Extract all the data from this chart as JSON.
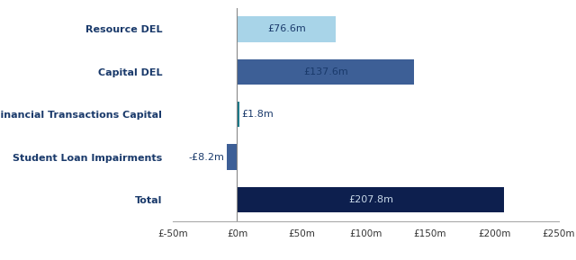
{
  "categories": [
    "Resource DEL",
    "Capital DEL",
    "Financial Transactions Capital",
    "Student Loan Impairments",
    "Total"
  ],
  "values": [
    76.6,
    137.6,
    1.8,
    -8.2,
    207.8
  ],
  "bar_colors": [
    "#a8d4e8",
    "#3d5f96",
    "#1a7a8a",
    "#3d5f96",
    "#0d1f4e"
  ],
  "value_labels": [
    "£76.6m",
    "£137.6m",
    "£1.8m",
    "-£8.2m",
    "£207.8m"
  ],
  "value_label_colors": [
    "#1a3a6b",
    "#1a3a6b",
    "#1a3a6b",
    "#1a3a6b",
    "#c8d8e8"
  ],
  "xlim": [
    -50,
    250
  ],
  "xticks": [
    -50,
    0,
    50,
    100,
    150,
    200,
    250
  ],
  "xtick_labels": [
    "£-50m",
    "£0m",
    "£50m",
    "£100m",
    "£150m",
    "£200m",
    "£250m"
  ],
  "bg_color": "#ffffff",
  "category_label_color": "#1a3a6b",
  "spine_color": "#aaaaaa",
  "bar_height": 0.6
}
